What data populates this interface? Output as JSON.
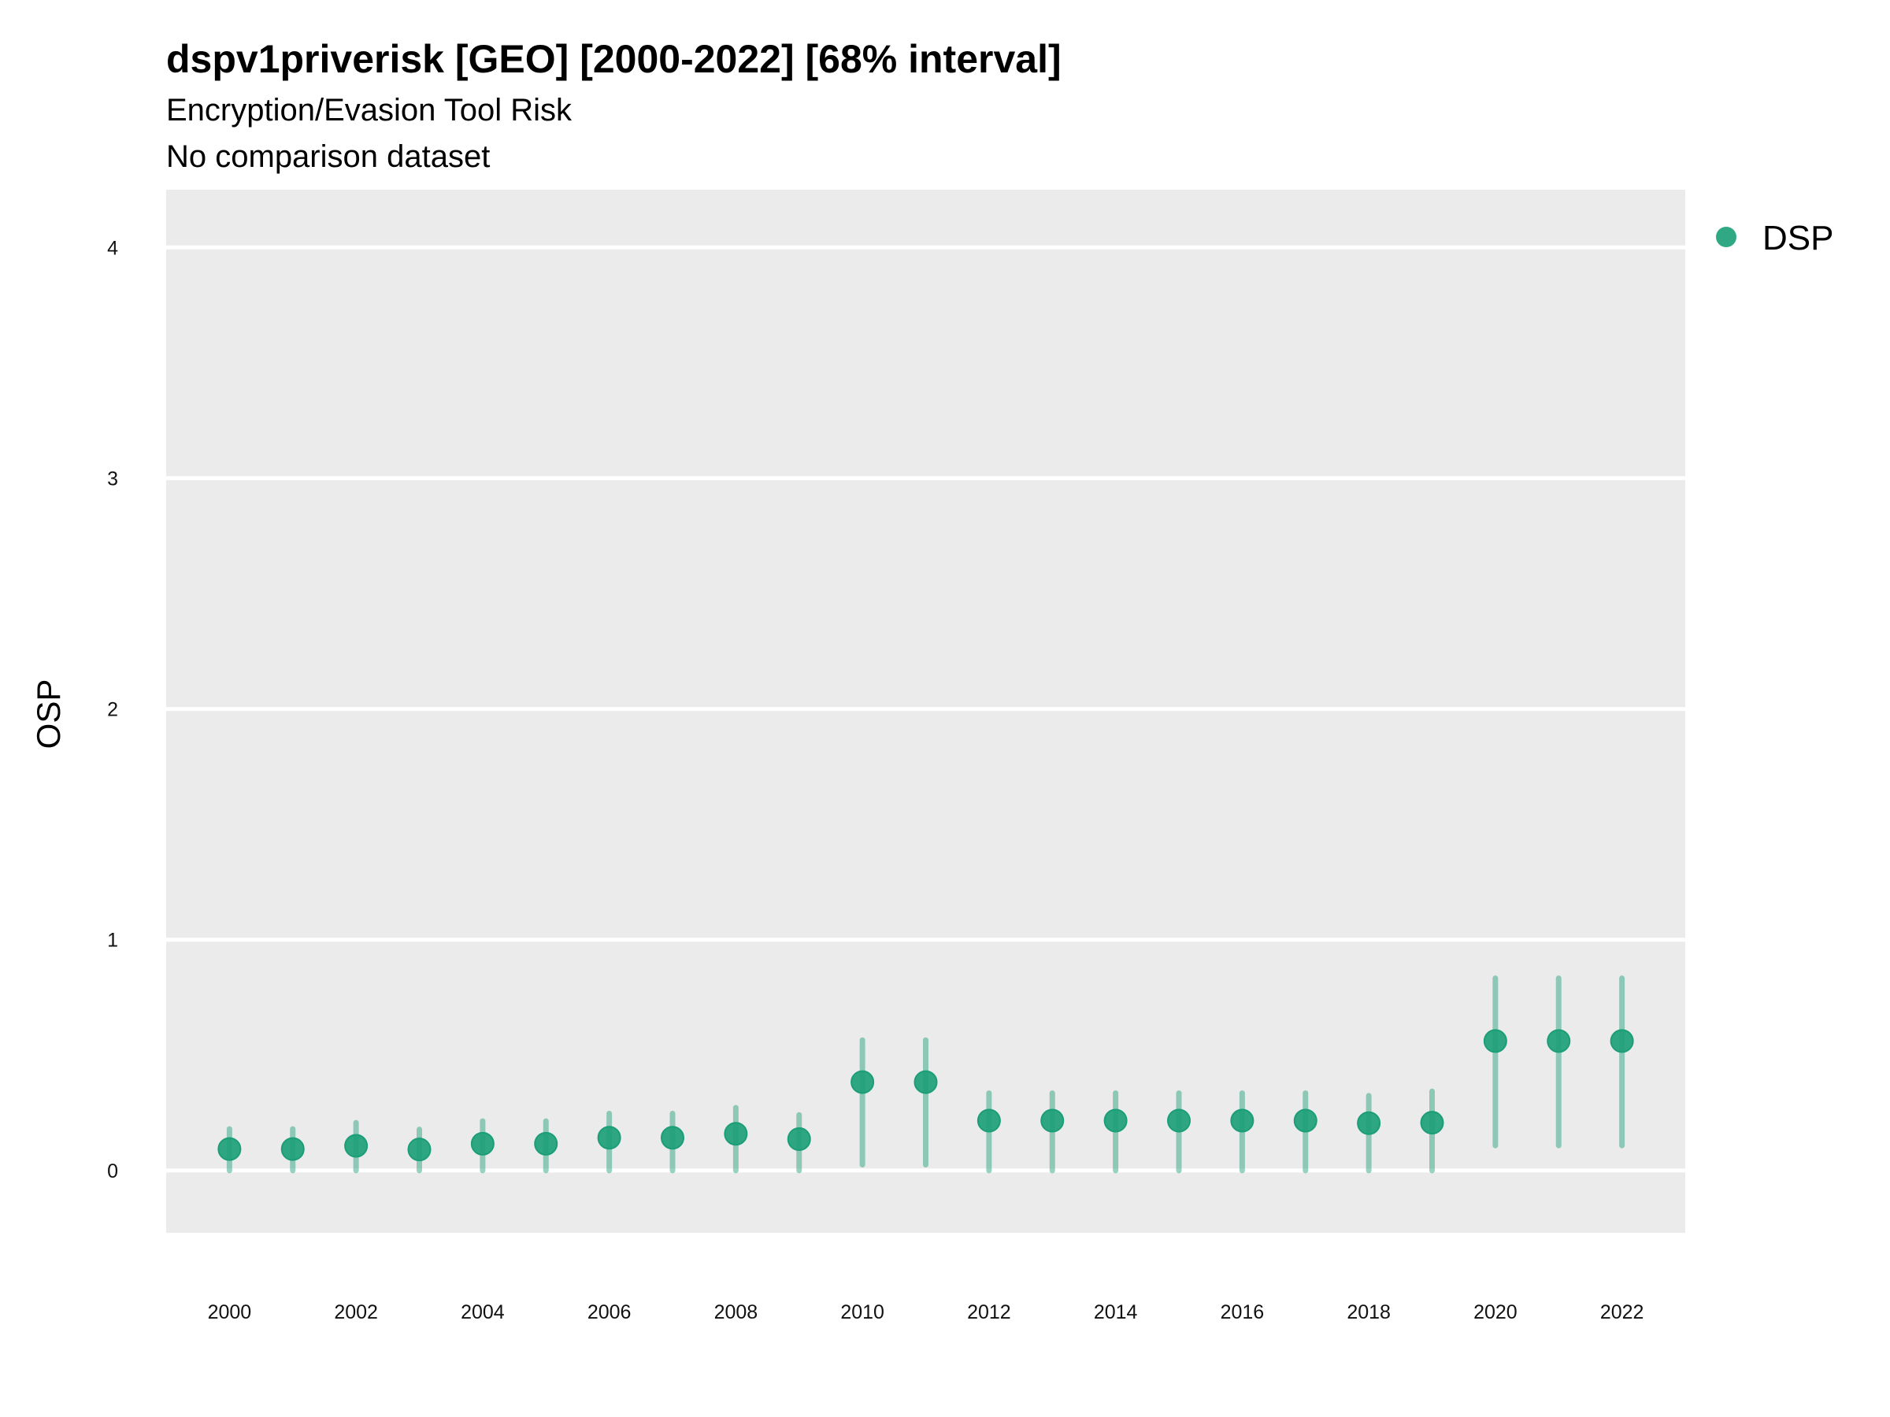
{
  "chart_data": {
    "type": "scatter",
    "title": "dspv1priverisk [GEO] [2000-2022] [68% interval]",
    "subtitle": "Encryption/Evasion Tool Risk",
    "caption_line": "No comparison dataset",
    "xlabel": "",
    "ylabel": "OSP",
    "xlim": [
      1999,
      2023
    ],
    "ylim": [
      -0.27,
      4.25
    ],
    "x_ticks": [
      2000,
      2002,
      2004,
      2006,
      2008,
      2010,
      2012,
      2014,
      2016,
      2018,
      2020,
      2022
    ],
    "y_ticks": [
      0,
      1,
      2,
      3,
      4
    ],
    "grid": true,
    "legend_position": "top-right",
    "series": [
      {
        "name": "DSP",
        "color": "#1b9e77",
        "x": [
          2000,
          2001,
          2002,
          2003,
          2004,
          2005,
          2006,
          2007,
          2008,
          2009,
          2010,
          2011,
          2012,
          2013,
          2014,
          2015,
          2016,
          2017,
          2018,
          2019,
          2020,
          2021,
          2022
        ],
        "y": [
          0.093,
          0.093,
          0.107,
          0.091,
          0.116,
          0.116,
          0.142,
          0.142,
          0.159,
          0.136,
          0.383,
          0.383,
          0.216,
          0.216,
          0.216,
          0.216,
          0.216,
          0.216,
          0.205,
          0.207,
          0.561,
          0.561,
          0.561
        ],
        "lower": [
          0,
          0,
          0,
          0,
          0,
          0,
          0,
          0,
          0,
          0,
          0.025,
          0.025,
          0,
          0,
          0,
          0,
          0,
          0,
          0,
          0,
          0.108,
          0.108,
          0.108
        ],
        "upper": [
          0.18,
          0.18,
          0.207,
          0.178,
          0.214,
          0.214,
          0.247,
          0.247,
          0.272,
          0.241,
          0.565,
          0.565,
          0.335,
          0.335,
          0.335,
          0.335,
          0.335,
          0.335,
          0.324,
          0.343,
          0.833,
          0.833,
          0.833
        ]
      }
    ]
  }
}
